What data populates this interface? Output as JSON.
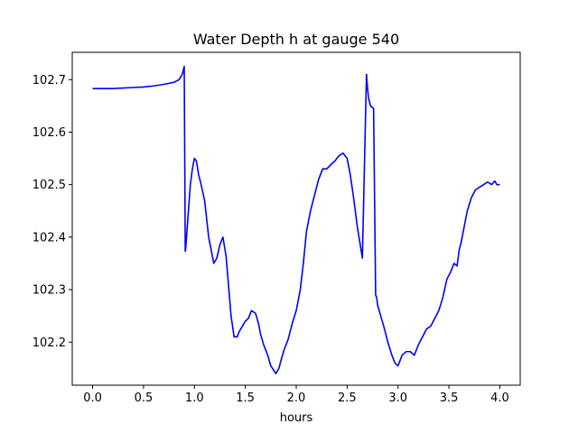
{
  "chart_data": {
    "type": "line",
    "title": "Water Depth h at gauge 540",
    "xlabel": "hours",
    "ylabel": "",
    "xlim": [
      -0.2,
      4.2
    ],
    "ylim": [
      102.118,
      102.752
    ],
    "xticks": [
      0.0,
      0.5,
      1.0,
      1.5,
      2.0,
      2.5,
      3.0,
      3.5,
      4.0
    ],
    "xtick_labels": [
      "0.0",
      "0.5",
      "1.0",
      "1.5",
      "2.0",
      "2.5",
      "3.0",
      "3.5",
      "4.0"
    ],
    "yticks": [
      102.2,
      102.3,
      102.4,
      102.5,
      102.6,
      102.7
    ],
    "ytick_labels": [
      "102.2",
      "102.3",
      "102.4",
      "102.5",
      "102.6",
      "102.7"
    ],
    "grid": false,
    "legend": "none",
    "color": "#0000ff",
    "series": [
      {
        "x": [
          0.0,
          0.2,
          0.4,
          0.5,
          0.6,
          0.7,
          0.8,
          0.85,
          0.88,
          0.9,
          0.91,
          0.915,
          0.93,
          0.96,
          0.98,
          1.0,
          1.02,
          1.04,
          1.06,
          1.1,
          1.14,
          1.17,
          1.19,
          1.22,
          1.25,
          1.28,
          1.31,
          1.33,
          1.36,
          1.39,
          1.42,
          1.44,
          1.47,
          1.5,
          1.53,
          1.56,
          1.6,
          1.63,
          1.65,
          1.68,
          1.72,
          1.75,
          1.8,
          1.83,
          1.85,
          1.88,
          1.92,
          1.96,
          2.0,
          2.04,
          2.07,
          2.1,
          2.14,
          2.18,
          2.22,
          2.26,
          2.3,
          2.35,
          2.38,
          2.42,
          2.46,
          2.5,
          2.53,
          2.56,
          2.6,
          2.65,
          2.69,
          2.7,
          2.71,
          2.73,
          2.76,
          2.78,
          2.79,
          2.8,
          2.83,
          2.86,
          2.9,
          2.94,
          2.97,
          3.0,
          3.04,
          3.08,
          3.12,
          3.16,
          3.2,
          3.24,
          3.28,
          3.32,
          3.36,
          3.4,
          3.44,
          3.48,
          3.52,
          3.55,
          3.58,
          3.6,
          3.62,
          3.65,
          3.68,
          3.72,
          3.76,
          3.8,
          3.84,
          3.88,
          3.92,
          3.95,
          3.97,
          4.0
        ],
        "y": [
          102.683,
          102.683,
          102.685,
          102.686,
          102.688,
          102.691,
          102.695,
          102.7,
          102.71,
          102.725,
          102.373,
          102.38,
          102.42,
          102.5,
          102.53,
          102.55,
          102.545,
          102.52,
          102.505,
          102.47,
          102.4,
          102.37,
          102.35,
          102.36,
          102.385,
          102.4,
          102.365,
          102.32,
          102.25,
          102.21,
          102.21,
          102.22,
          102.23,
          102.24,
          102.245,
          102.26,
          102.255,
          102.235,
          102.215,
          102.195,
          102.175,
          102.155,
          102.14,
          102.15,
          102.165,
          102.185,
          102.205,
          102.235,
          102.26,
          102.3,
          102.35,
          102.41,
          102.45,
          102.48,
          102.51,
          102.53,
          102.53,
          102.54,
          102.545,
          102.555,
          102.56,
          102.55,
          102.52,
          102.48,
          102.42,
          102.36,
          102.71,
          102.685,
          102.665,
          102.65,
          102.645,
          102.29,
          102.285,
          102.27,
          102.25,
          102.23,
          102.2,
          102.175,
          102.16,
          102.155,
          102.175,
          102.182,
          102.182,
          102.175,
          102.195,
          102.21,
          102.225,
          102.23,
          102.245,
          102.26,
          102.285,
          102.32,
          102.335,
          102.35,
          102.345,
          102.375,
          102.39,
          102.42,
          102.45,
          102.475,
          102.49,
          102.495,
          102.5,
          102.505,
          102.5,
          102.507,
          102.5,
          102.5
        ]
      }
    ]
  }
}
